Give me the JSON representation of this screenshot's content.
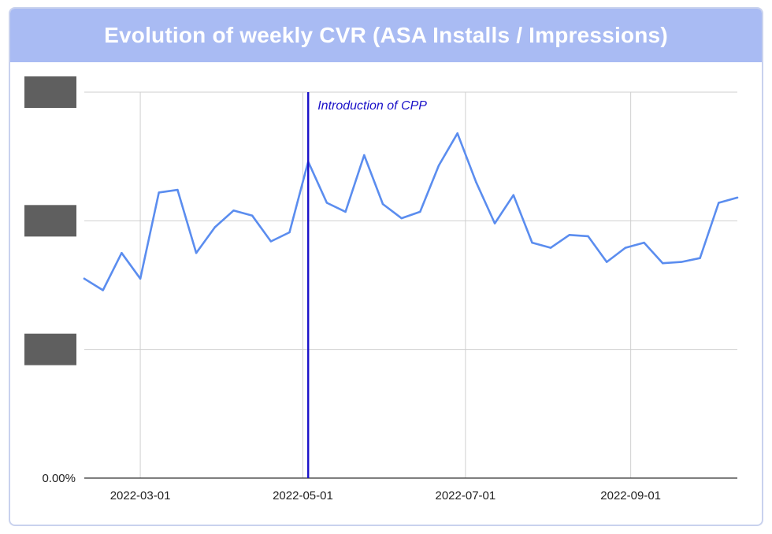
{
  "chart_data": {
    "type": "line",
    "title": "Evolution of weekly CVR (ASA Installs / Impressions)",
    "xlabel": "",
    "ylabel": "",
    "x_tick_labels": [
      "2022-03-01",
      "2022-05-01",
      "2022-07-01",
      "2022-09-01"
    ],
    "x_ticks": [
      "2022-03-01",
      "2022-05-01",
      "2022-07-01",
      "2022-09-01"
    ],
    "xlim": [
      "2022-02-08",
      "2022-10-11"
    ],
    "y_tick_labels": [
      "0.00%",
      "",
      "",
      ""
    ],
    "y_ticks": [
      0,
      1,
      2,
      3
    ],
    "y_tick_labels_redacted": true,
    "ylim": [
      0,
      3
    ],
    "grid": true,
    "legend": "none",
    "colors": {
      "series": "#5b8def",
      "annotation": "#1a11c8",
      "redaction": "#5f5f5f",
      "header": "#a9bbf3"
    },
    "series": [
      {
        "x": [
          "2022-02-08",
          "2022-02-15",
          "2022-02-22",
          "2022-03-01",
          "2022-03-08",
          "2022-03-15",
          "2022-03-22",
          "2022-03-29",
          "2022-04-05",
          "2022-04-12",
          "2022-04-19",
          "2022-04-26",
          "2022-05-03",
          "2022-05-10",
          "2022-05-17",
          "2022-05-24",
          "2022-05-31",
          "2022-06-07",
          "2022-06-14",
          "2022-06-21",
          "2022-06-28",
          "2022-07-05",
          "2022-07-12",
          "2022-07-19",
          "2022-07-26",
          "2022-08-02",
          "2022-08-09",
          "2022-08-16",
          "2022-08-23",
          "2022-08-30",
          "2022-09-06",
          "2022-09-13",
          "2022-09-20",
          "2022-09-27",
          "2022-10-04",
          "2022-10-11"
        ],
        "values": [
          1.55,
          1.46,
          1.75,
          1.55,
          2.22,
          2.24,
          1.75,
          1.95,
          2.08,
          2.04,
          1.84,
          1.91,
          2.46,
          2.14,
          2.07,
          2.51,
          2.13,
          2.02,
          2.07,
          2.43,
          2.68,
          2.3,
          1.98,
          2.2,
          1.83,
          1.79,
          1.89,
          1.88,
          1.68,
          1.79,
          1.83,
          1.67,
          1.68,
          1.71,
          2.14,
          2.18
        ]
      }
    ],
    "annotations": [
      {
        "x": "2022-05-03",
        "label": "Introduction of CPP"
      }
    ]
  }
}
